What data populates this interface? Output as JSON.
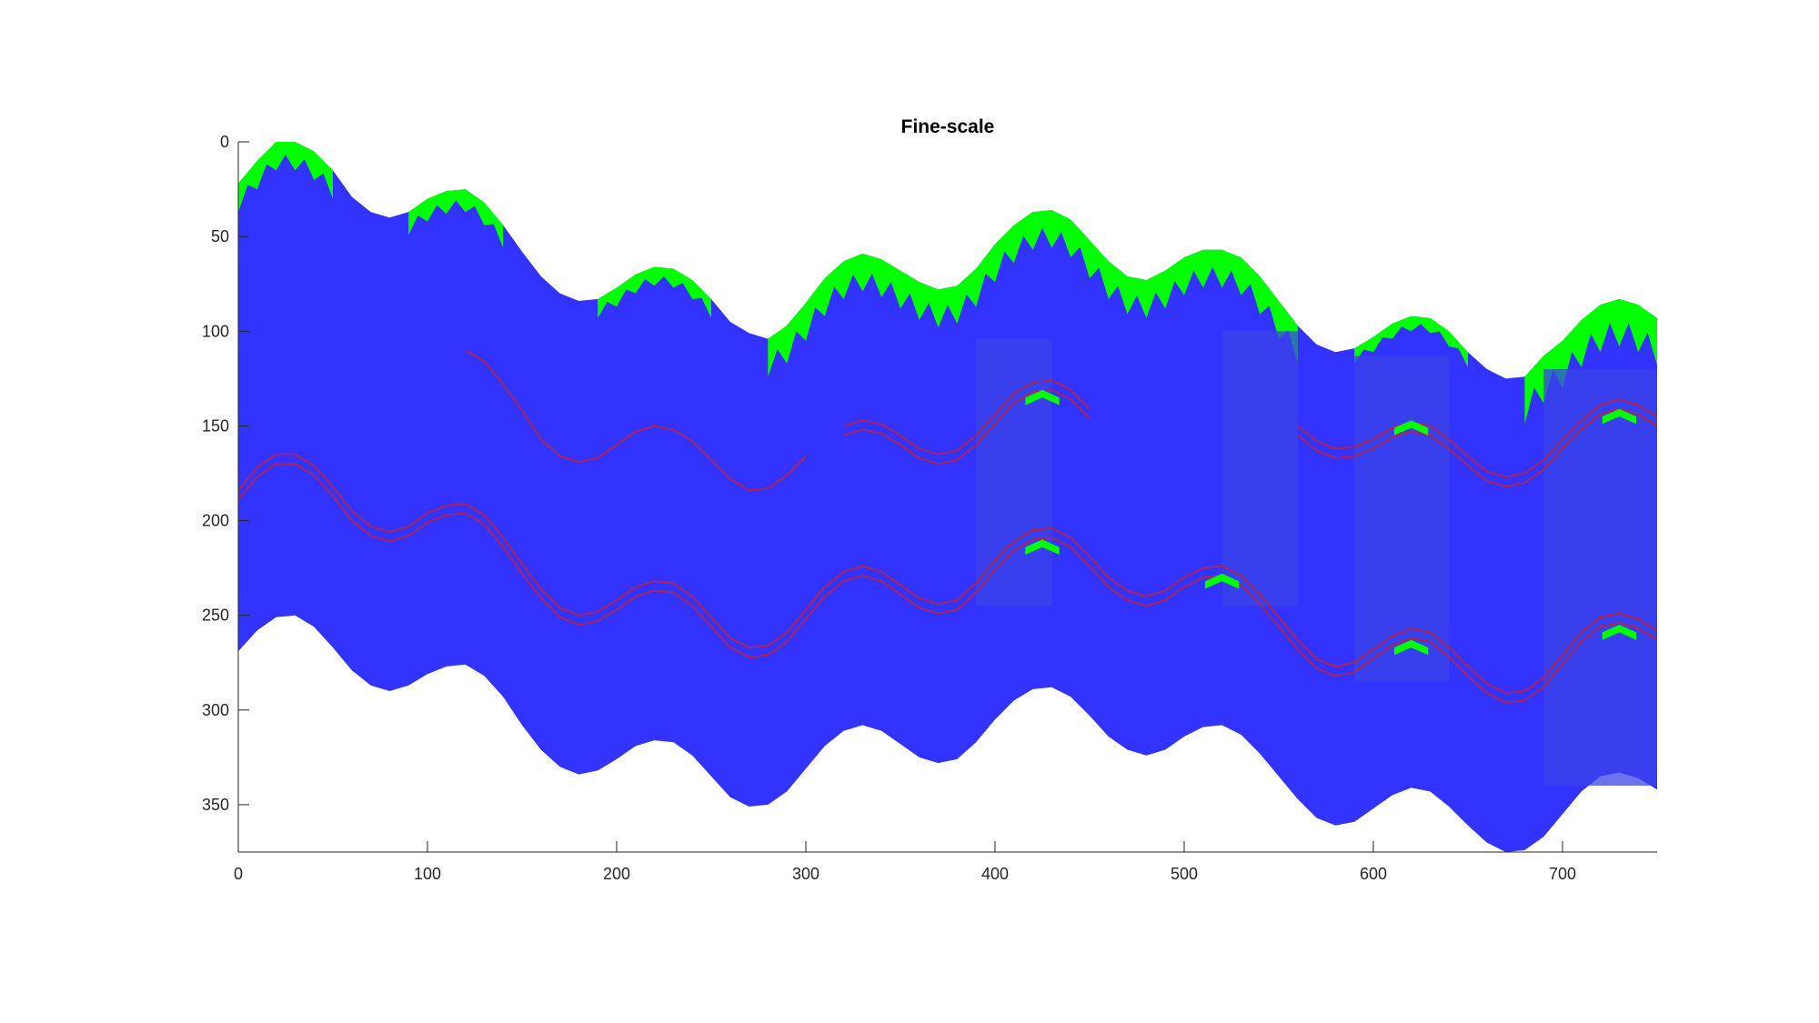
{
  "chart_data": {
    "type": "area",
    "title": "Fine-scale",
    "xlabel": "",
    "ylabel": "",
    "xlim": [
      0,
      750
    ],
    "ylim": [
      0,
      375
    ],
    "y_reversed": true,
    "grid": false,
    "xticks": [
      0,
      100,
      200,
      300,
      400,
      500,
      600,
      700
    ],
    "yticks": [
      0,
      50,
      100,
      150,
      200,
      250,
      300,
      350
    ],
    "colors": {
      "body": "#3333ff",
      "cap": "#00ff00",
      "column": "#3a46e6",
      "contour": "#c81e32"
    },
    "top_boundary": {
      "x": [
        0,
        10,
        20,
        30,
        40,
        50,
        60,
        70,
        80,
        90,
        100,
        110,
        120,
        130,
        140,
        150,
        160,
        170,
        180,
        190,
        200,
        210,
        220,
        230,
        240,
        250,
        260,
        270,
        280,
        290,
        300,
        310,
        320,
        330,
        340,
        350,
        360,
        370,
        380,
        390,
        400,
        410,
        420,
        430,
        440,
        450,
        460,
        470,
        480,
        490,
        500,
        510,
        520,
        530,
        540,
        550,
        560,
        570,
        580,
        590,
        600,
        610,
        620,
        630,
        640,
        650,
        660,
        670,
        680,
        690,
        700,
        710,
        720,
        730,
        740,
        750
      ],
      "y": [
        22,
        10,
        0,
        0,
        5,
        15,
        29,
        37,
        40,
        37,
        30,
        26,
        25,
        32,
        44,
        58,
        71,
        80,
        84,
        83,
        77,
        70,
        66,
        67,
        73,
        83,
        95,
        101,
        104,
        97,
        85,
        72,
        63,
        59,
        62,
        68,
        74,
        78,
        76,
        67,
        54,
        44,
        37,
        36,
        41,
        52,
        63,
        71,
        73,
        68,
        61,
        57,
        57,
        61,
        71,
        84,
        97,
        107,
        111,
        109,
        103,
        96,
        92,
        93,
        100,
        111,
        120,
        125,
        124,
        113,
        105,
        94,
        86,
        83,
        86,
        93
      ]
    },
    "bottom_boundary": {
      "x": [
        0,
        10,
        20,
        30,
        40,
        50,
        60,
        70,
        80,
        90,
        100,
        110,
        120,
        130,
        140,
        150,
        160,
        170,
        180,
        190,
        200,
        210,
        220,
        230,
        240,
        250,
        260,
        270,
        280,
        290,
        300,
        310,
        320,
        330,
        340,
        350,
        360,
        370,
        380,
        390,
        400,
        410,
        420,
        430,
        440,
        450,
        460,
        470,
        480,
        490,
        500,
        510,
        520,
        530,
        540,
        550,
        560,
        570,
        580,
        590,
        600,
        610,
        620,
        630,
        640,
        650,
        660,
        670,
        680,
        690,
        700,
        710,
        720,
        730,
        740,
        750
      ],
      "y": [
        269,
        258,
        251,
        250,
        256,
        267,
        279,
        287,
        290,
        287,
        281,
        277,
        276,
        282,
        293,
        308,
        321,
        330,
        334,
        332,
        326,
        319,
        316,
        317,
        324,
        335,
        346,
        351,
        350,
        343,
        331,
        319,
        311,
        308,
        311,
        318,
        325,
        328,
        326,
        317,
        305,
        295,
        289,
        288,
        293,
        303,
        314,
        321,
        324,
        321,
        314,
        309,
        308,
        313,
        323,
        335,
        347,
        357,
        361,
        359,
        352,
        345,
        341,
        343,
        351,
        361,
        370,
        375,
        374,
        367,
        355,
        343,
        335,
        333,
        336,
        342
      ]
    },
    "cap_segments": [
      {
        "x0": 0,
        "x1": 50,
        "depth": 15
      },
      {
        "x0": 90,
        "x1": 140,
        "depth": 12
      },
      {
        "x0": 190,
        "x1": 250,
        "depth": 10
      },
      {
        "x0": 280,
        "x1": 560,
        "depth": 20
      },
      {
        "x0": 590,
        "x1": 650,
        "depth": 8
      },
      {
        "x0": 680,
        "x1": 750,
        "depth": 25
      }
    ],
    "columns": [
      {
        "x0": 390,
        "x1": 430,
        "y0": 104,
        "y1": 245
      },
      {
        "x0": 520,
        "x1": 560,
        "y0": 100,
        "y1": 245
      },
      {
        "x0": 590,
        "x1": 640,
        "y0": 113,
        "y1": 285
      },
      {
        "x0": 690,
        "x1": 750,
        "y0": 120,
        "y1": 340
      }
    ],
    "patches": [
      {
        "x": 425,
        "y": 131
      },
      {
        "x": 425,
        "y": 210
      },
      {
        "x": 520,
        "y": 228
      },
      {
        "x": 620,
        "y": 147
      },
      {
        "x": 620,
        "y": 263
      },
      {
        "x": 730,
        "y": 141
      },
      {
        "x": 730,
        "y": 255
      }
    ],
    "contours": [
      {
        "name": "",
        "x": [
          0,
          10,
          20,
          30,
          40,
          50,
          60,
          70,
          80,
          90,
          100,
          110,
          120,
          130,
          140,
          150,
          160,
          170,
          180,
          190,
          200,
          210,
          220,
          230,
          240,
          250,
          260,
          270,
          280,
          290,
          300,
          310,
          320,
          330,
          340,
          350,
          360,
          370,
          380,
          390,
          400,
          410,
          420,
          430,
          440,
          450,
          460,
          470,
          480,
          490,
          500,
          510,
          520,
          530,
          540,
          550,
          560,
          570,
          580,
          590,
          600,
          610,
          620,
          630,
          640,
          650,
          660,
          670,
          680,
          690,
          700,
          710,
          720,
          730,
          740,
          750
        ],
        "y": [
          184,
          172,
          165,
          165,
          171,
          182,
          195,
          203,
          206,
          203,
          196,
          192,
          191,
          197,
          209,
          223,
          236,
          246,
          250,
          248,
          242,
          235,
          232,
          233,
          240,
          251,
          262,
          267,
          266,
          259,
          247,
          235,
          227,
          224,
          227,
          234,
          241,
          244,
          242,
          233,
          221,
          211,
          205,
          204,
          209,
          219,
          230,
          237,
          240,
          237,
          230,
          225,
          224,
          229,
          239,
          251,
          263,
          273,
          277,
          275,
          268,
          261,
          257,
          259,
          267,
          277,
          286,
          291,
          290,
          283,
          271,
          259,
          251,
          249,
          252,
          258
        ]
      }
    ],
    "contour_offset": 5,
    "upper_contours": [
      {
        "x": [
          120,
          130,
          140,
          150,
          160,
          170,
          180,
          190,
          200,
          210,
          220,
          230,
          240,
          250,
          260,
          270,
          280,
          290,
          300
        ],
        "y": [
          110,
          116,
          128,
          142,
          157,
          166,
          169,
          167,
          160,
          153,
          150,
          152,
          158,
          168,
          178,
          184,
          183,
          176,
          166
        ]
      },
      {
        "x": [
          320,
          330,
          340,
          350,
          360,
          370,
          380,
          390,
          400,
          410,
          420,
          430,
          440,
          450
        ],
        "y": [
          150,
          147,
          149,
          155,
          162,
          165,
          163,
          155,
          144,
          133,
          127,
          126,
          131,
          141
        ]
      },
      {
        "x": [
          560,
          570,
          580,
          590,
          600,
          610,
          620,
          630,
          640,
          650,
          660,
          670,
          680,
          690,
          700,
          710,
          720,
          730,
          740,
          750
        ],
        "y": [
          150,
          158,
          162,
          161,
          157,
          151,
          148,
          150,
          157,
          166,
          174,
          177,
          175,
          168,
          157,
          147,
          139,
          136,
          139,
          145
        ]
      }
    ]
  }
}
